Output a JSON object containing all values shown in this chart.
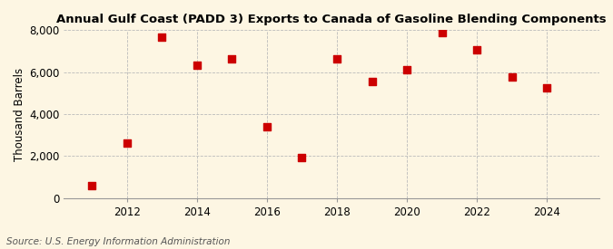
{
  "title": "Annual Gulf Coast (PADD 3) Exports to Canada of Gasoline Blending Components",
  "ylabel": "Thousand Barrels",
  "source": "Source: U.S. Energy Information Administration",
  "years": [
    2011,
    2012,
    2013,
    2014,
    2015,
    2016,
    2017,
    2018,
    2019,
    2020,
    2021,
    2022,
    2023,
    2024
  ],
  "values": [
    600,
    2600,
    7650,
    6350,
    6650,
    3400,
    1950,
    6650,
    5550,
    6100,
    7900,
    7050,
    5750,
    5250
  ],
  "ylim": [
    0,
    8000
  ],
  "yticks": [
    0,
    2000,
    4000,
    6000,
    8000
  ],
  "ytick_labels": [
    "0",
    "2,000",
    "4,000",
    "6,000",
    "8,000"
  ],
  "xticks": [
    2012,
    2014,
    2016,
    2018,
    2020,
    2022,
    2024
  ],
  "marker_color": "#cc0000",
  "marker": "s",
  "marker_size": 28,
  "background_color": "#fdf6e3",
  "grid_color": "#bbbbbb",
  "title_fontsize": 9.5,
  "axis_fontsize": 8.5,
  "source_fontsize": 7.5
}
